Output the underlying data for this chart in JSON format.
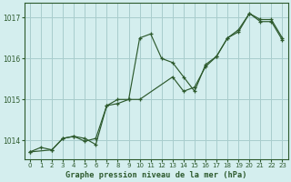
{
  "xlabel": "Graphe pression niveau de la mer (hPa)",
  "background_color": "#d4eeee",
  "grid_color": "#a8cccc",
  "line_color": "#2d5a2d",
  "ylim": [
    1013.55,
    1017.35
  ],
  "xlim": [
    -0.5,
    23.5
  ],
  "yticks": [
    1014,
    1015,
    1016,
    1017
  ],
  "xticks": [
    0,
    1,
    2,
    3,
    4,
    5,
    6,
    7,
    8,
    9,
    10,
    11,
    12,
    13,
    14,
    15,
    16,
    17,
    18,
    19,
    20,
    21,
    22,
    23
  ],
  "series1_x": [
    0,
    1,
    2,
    3,
    4,
    5,
    6,
    7,
    8,
    9,
    10,
    11,
    12,
    13,
    14,
    15,
    16,
    17,
    18,
    19,
    20,
    21,
    22,
    23
  ],
  "series1_y": [
    1013.72,
    1013.83,
    1013.77,
    1014.05,
    1014.1,
    1014.05,
    1013.9,
    1014.85,
    1014.9,
    1015.0,
    1016.5,
    1016.6,
    1016.0,
    1015.9,
    1015.55,
    1015.2,
    1015.85,
    1016.05,
    1016.5,
    1016.7,
    1017.1,
    1016.95,
    1016.95,
    1016.5
  ],
  "series2_x": [
    0,
    2,
    3,
    4,
    5,
    6,
    7,
    8,
    9,
    10,
    13,
    14,
    15,
    16,
    17,
    18,
    19,
    20,
    21,
    22,
    23
  ],
  "series2_y": [
    1013.72,
    1013.77,
    1014.05,
    1014.1,
    1013.98,
    1014.05,
    1014.85,
    1015.0,
    1015.0,
    1015.0,
    1015.55,
    1015.2,
    1015.3,
    1015.8,
    1016.05,
    1016.5,
    1016.65,
    1017.1,
    1016.9,
    1016.9,
    1016.45
  ]
}
